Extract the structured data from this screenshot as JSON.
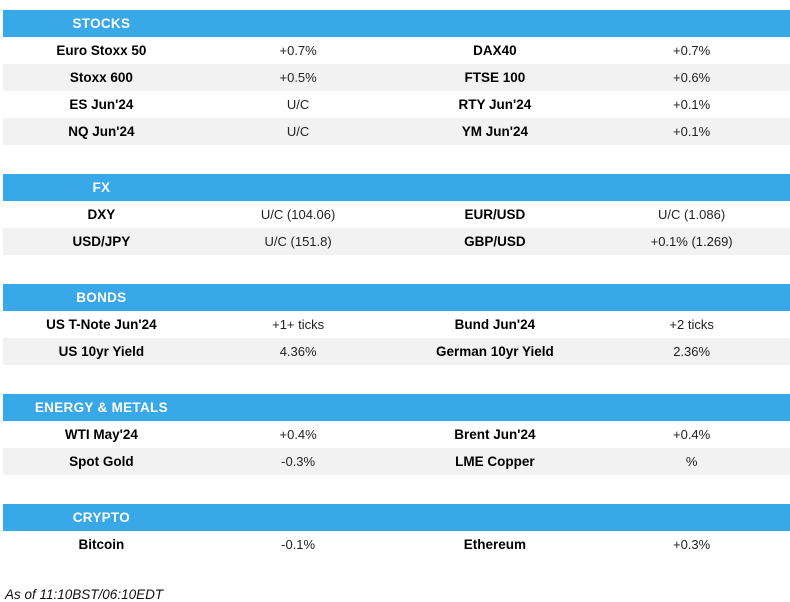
{
  "colors": {
    "accent": "#39A8E8",
    "row_alt": "#F2F2F2",
    "header_text": "#FFFFFF",
    "body_text": "#000000"
  },
  "sections": [
    {
      "title": "STOCKS",
      "rows": [
        [
          "Euro Stoxx 50",
          "+0.7%",
          "DAX40",
          "+0.7%"
        ],
        [
          "Stoxx 600",
          "+0.5%",
          "FTSE 100",
          "+0.6%"
        ],
        [
          "ES Jun'24",
          "U/C",
          "RTY Jun'24",
          "+0.1%"
        ],
        [
          "NQ Jun'24",
          "U/C",
          "YM Jun'24",
          "+0.1%"
        ]
      ]
    },
    {
      "title": "FX",
      "rows": [
        [
          "DXY",
          "U/C (104.06)",
          "EUR/USD",
          "U/C (1.086)"
        ],
        [
          "USD/JPY",
          "U/C (151.8)",
          "GBP/USD",
          "+0.1% (1.269)"
        ]
      ]
    },
    {
      "title": "BONDS",
      "rows": [
        [
          "US T-Note Jun'24",
          "+1+ ticks",
          "Bund Jun'24",
          "+2 ticks"
        ],
        [
          "US 10yr Yield",
          "4.36%",
          "German 10yr Yield",
          "2.36%"
        ]
      ]
    },
    {
      "title": "ENERGY & METALS",
      "rows": [
        [
          "WTI May'24",
          "+0.4%",
          "Brent Jun'24",
          "+0.4%"
        ],
        [
          "Spot Gold",
          "-0.3%",
          "LME Copper",
          "%"
        ]
      ]
    },
    {
      "title": "CRYPTO",
      "rows": [
        [
          "Bitcoin",
          "-0.1%",
          "Ethereum",
          "+0.3%"
        ]
      ]
    }
  ],
  "footer": {
    "as_of": "As of 11:10BST/06:10EDT"
  }
}
